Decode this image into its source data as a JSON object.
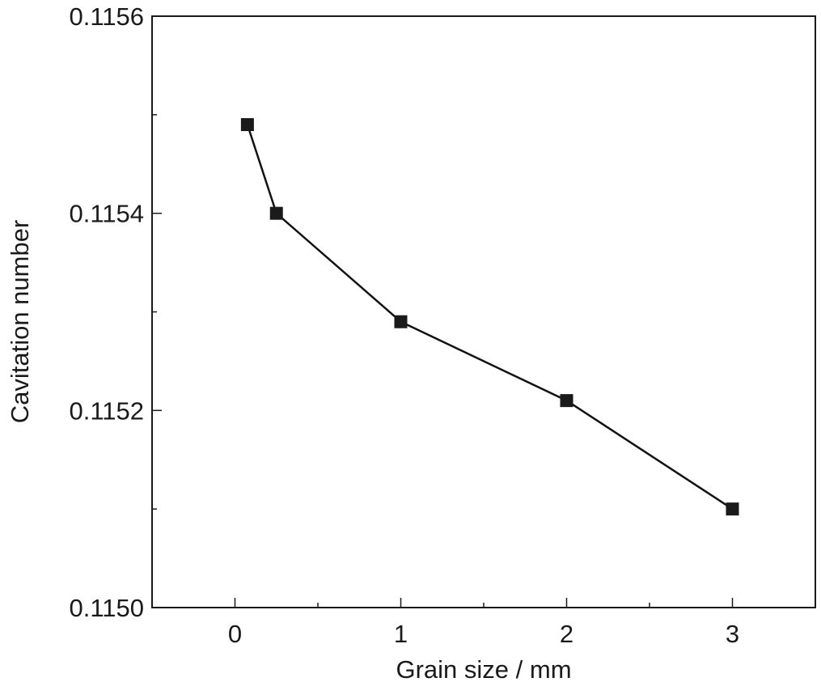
{
  "chart_data": {
    "type": "line",
    "title": "",
    "xlabel": "Grain size / mm",
    "ylabel": "Cavitation number",
    "xlim": [
      -0.5,
      3.5
    ],
    "ylim": [
      0.115,
      0.1156
    ],
    "x_ticks": [
      {
        "value": 0,
        "label": "0"
      },
      {
        "value": 1,
        "label": "1"
      },
      {
        "value": 2,
        "label": "2"
      },
      {
        "value": 3,
        "label": "3"
      }
    ],
    "x_minor_ticks": [
      0.5,
      1.5,
      2.5
    ],
    "y_ticks": [
      {
        "value": 0.115,
        "label": "0.1150"
      },
      {
        "value": 0.1152,
        "label": "0.1152"
      },
      {
        "value": 0.1154,
        "label": "0.1154"
      },
      {
        "value": 0.1156,
        "label": "0.1156"
      }
    ],
    "y_minor_ticks": [
      0.1151,
      0.1153,
      0.1155
    ],
    "grid": false,
    "legend": "none",
    "marker": "square",
    "color": "#1a1a1a",
    "series": [
      {
        "x": [
          0.075,
          0.25,
          1,
          2,
          3
        ],
        "y": [
          0.11549,
          0.1154,
          0.11529,
          0.11521,
          0.1151
        ]
      }
    ]
  }
}
